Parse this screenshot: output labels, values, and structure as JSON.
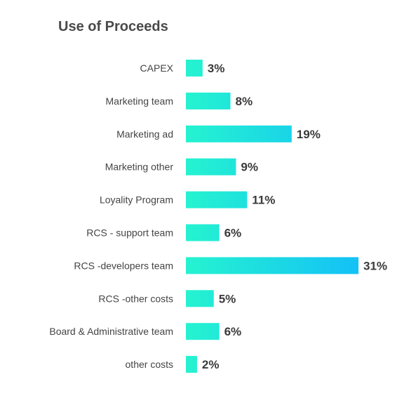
{
  "chart_data": {
    "type": "bar",
    "orientation": "horizontal",
    "title": "Use of Proceeds",
    "categories": [
      "CAPEX",
      "Marketing team",
      "Marketing ad",
      "Marketing other",
      "Loyality Program",
      "RCS - support team",
      "RCS -developers team",
      "RCS -other costs",
      "Board & Administrative team",
      "other costs"
    ],
    "values": [
      3,
      8,
      19,
      9,
      11,
      6,
      31,
      5,
      6,
      2
    ],
    "value_labels": [
      "3%",
      "8%",
      "19%",
      "9%",
      "11%",
      "6%",
      "31%",
      "5%",
      "6%",
      "2%"
    ],
    "xlabel": "",
    "ylabel": "",
    "xlim": [
      0,
      31
    ],
    "grid": false,
    "colors": {
      "start": "#25f3d0",
      "end": "#13c1f7"
    }
  }
}
